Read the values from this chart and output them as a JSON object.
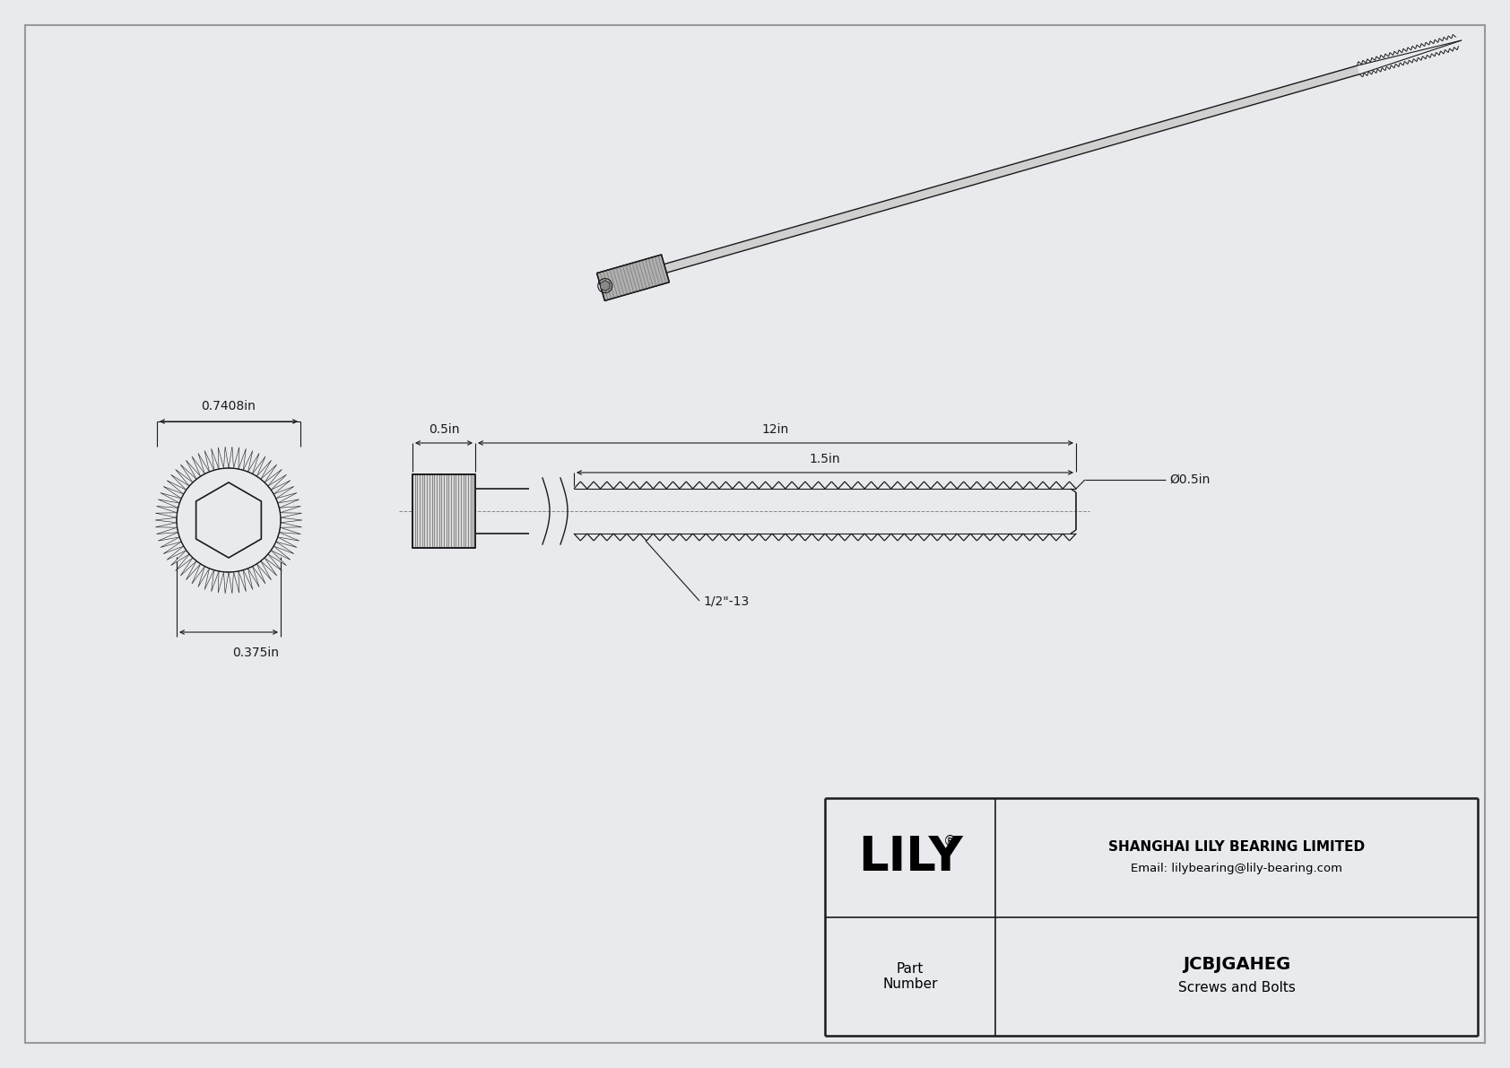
{
  "bg_color": "#e8eaed",
  "line_color": "#1a1a1a",
  "title_text": "JCBJGAHEG",
  "subtitle_text": "Screws and Bolts",
  "company_name": "SHANGHAI LILY BEARING LIMITED",
  "company_email": "Email: lilybearing@lily-bearing.com",
  "part_label": "Part\nNumber",
  "logo_text": "LILY",
  "dim_head_diameter": "0.7408in",
  "dim_head_length": "0.5in",
  "dim_total_length": "12in",
  "dim_thread_length": "1.5in",
  "dim_shank_diameter": "Ø0.5in",
  "dim_thread_pitch": "1/2\"-13",
  "dim_head_width": "0.375in"
}
